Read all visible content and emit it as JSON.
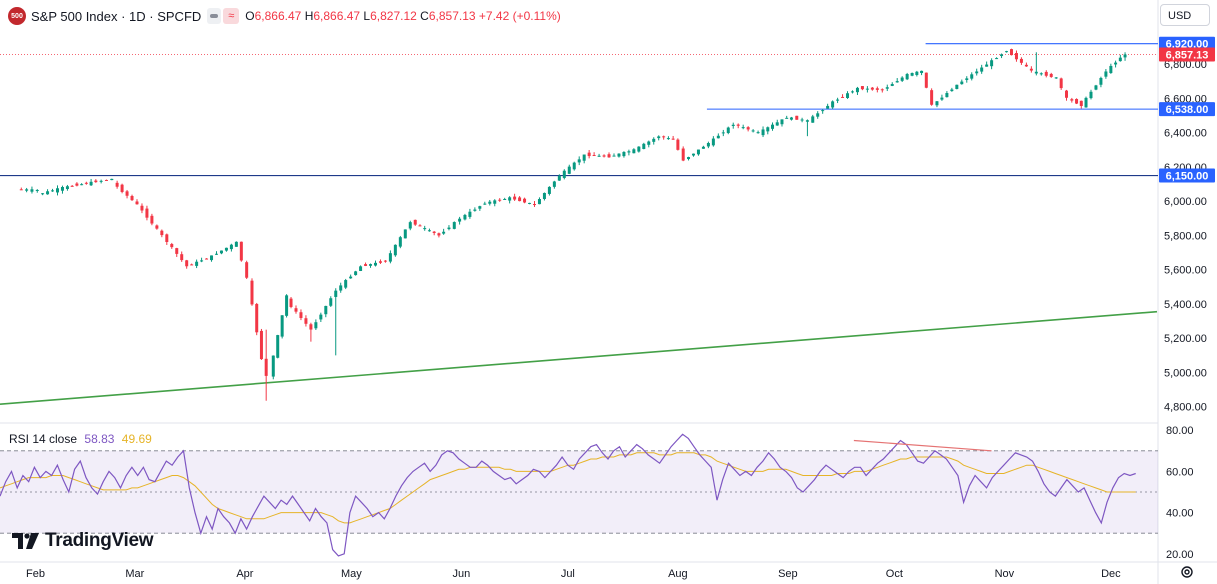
{
  "header": {
    "logo_text": "500",
    "title": "S&P 500 Index · 1D · SPCFD",
    "open_label": "O",
    "open": "6,866.47",
    "high_label": "H",
    "high": "6,866.47",
    "low_label": "L",
    "low": "6,827.12",
    "close_label": "C",
    "close": "6,857.13",
    "change": "+7.42 (+0.11%)"
  },
  "currency": "USD",
  "rsi_header": {
    "label": "RSI 14 close",
    "rsi": "58.83",
    "ma": "49.69"
  },
  "brand": "TradingView",
  "chart_data": {
    "type": "candlestick",
    "main": {
      "y_ticks": [
        4800,
        5000,
        5200,
        5400,
        5600,
        5800,
        6000,
        6200,
        6400,
        6600,
        6800
      ],
      "y_tick_labels": [
        "4,800.00",
        "5,000.00",
        "5,200.00",
        "5,400.00",
        "5,600.00",
        "5,800.00",
        "6,000.00",
        "6,200.00",
        "6,400.00",
        "6,600.00",
        "6,800.00"
      ],
      "ylim": [
        4705,
        7000
      ],
      "x_months": [
        "Feb",
        "Mar",
        "Apr",
        "May",
        "Jun",
        "Jul",
        "Aug",
        "Sep",
        "Oct",
        "Nov",
        "Dec"
      ],
      "price_labels": [
        {
          "value": 6920,
          "text": "6,920.00",
          "color": "#2962ff"
        },
        {
          "value": 6857.13,
          "text": "6,857.13",
          "color": "#f23645"
        },
        {
          "value": 6538,
          "text": "6,538.00",
          "color": "#2962ff"
        },
        {
          "value": 6150,
          "text": "6,150.00",
          "color": "#2962ff"
        }
      ],
      "horizontal_lines": [
        {
          "value": 6920,
          "x_start": 0.8,
          "color": "#2962ff"
        },
        {
          "value": 6538,
          "x_start": 0.611,
          "color": "#2962ff"
        },
        {
          "value": 6150,
          "x_start": 0.0,
          "color": "#1e3a8a"
        }
      ],
      "trend_line": {
        "from": [
          0.0,
          4815
        ],
        "to": [
          1.0,
          5355
        ],
        "color": "#43a047"
      },
      "current_price": 6857.13,
      "candles": [
        {
          "date": "2025-01-28",
          "o": 6070,
          "h": 6090,
          "l": 6040,
          "c": 6065
        },
        {
          "date": "2025-02-03",
          "o": 6040,
          "h": 6100,
          "l": 5990,
          "c": 6080
        },
        {
          "date": "2025-02-10",
          "o": 6080,
          "h": 6120,
          "l": 6060,
          "c": 6110
        },
        {
          "date": "2025-02-18",
          "o": 6110,
          "h": 6150,
          "l": 6080,
          "c": 6130
        },
        {
          "date": "2025-02-24",
          "o": 6110,
          "h": 6125,
          "l": 5960,
          "c": 5980
        },
        {
          "date": "2025-03-03",
          "o": 5980,
          "h": 6000,
          "l": 5780,
          "c": 5800
        },
        {
          "date": "2025-03-10",
          "o": 5800,
          "h": 5820,
          "l": 5580,
          "c": 5620
        },
        {
          "date": "2025-03-17",
          "o": 5620,
          "h": 5720,
          "l": 5600,
          "c": 5680
        },
        {
          "date": "2025-03-24",
          "o": 5680,
          "h": 5790,
          "l": 5650,
          "c": 5760
        },
        {
          "date": "2025-03-31",
          "o": 5760,
          "h": 5780,
          "l": 5500,
          "c": 5550
        },
        {
          "date": "2025-04-03",
          "o": 5550,
          "h": 5560,
          "l": 5050,
          "c": 5080
        },
        {
          "date": "2025-04-07",
          "o": 5080,
          "h": 5250,
          "l": 4835,
          "c": 4980
        },
        {
          "date": "2025-04-09",
          "o": 4980,
          "h": 5480,
          "l": 4950,
          "c": 5450
        },
        {
          "date": "2025-04-14",
          "o": 5420,
          "h": 5460,
          "l": 5180,
          "c": 5250
        },
        {
          "date": "2025-04-21",
          "o": 5250,
          "h": 5500,
          "l": 5100,
          "c": 5480
        },
        {
          "date": "2025-04-28",
          "o": 5480,
          "h": 5640,
          "l": 5460,
          "c": 5620
        },
        {
          "date": "2025-05-05",
          "o": 5620,
          "h": 5680,
          "l": 5580,
          "c": 5650
        },
        {
          "date": "2025-05-12",
          "o": 5650,
          "h": 5900,
          "l": 5640,
          "c": 5880
        },
        {
          "date": "2025-05-19",
          "o": 5880,
          "h": 5940,
          "l": 5780,
          "c": 5800
        },
        {
          "date": "2025-05-27",
          "o": 5800,
          "h": 5920,
          "l": 5780,
          "c": 5900
        },
        {
          "date": "2025-06-02",
          "o": 5900,
          "h": 6000,
          "l": 5880,
          "c": 5990
        },
        {
          "date": "2025-06-09",
          "o": 5990,
          "h": 6050,
          "l": 5950,
          "c": 6020
        },
        {
          "date": "2025-06-16",
          "o": 6020,
          "h": 6040,
          "l": 5960,
          "c": 5980
        },
        {
          "date": "2025-06-23",
          "o": 5980,
          "h": 6170,
          "l": 5960,
          "c": 6150
        },
        {
          "date": "2025-06-30",
          "o": 6150,
          "h": 6290,
          "l": 6140,
          "c": 6270
        },
        {
          "date": "2025-07-07",
          "o": 6270,
          "h": 6300,
          "l": 6240,
          "c": 6260
        },
        {
          "date": "2025-07-14",
          "o": 6260,
          "h": 6320,
          "l": 6230,
          "c": 6300
        },
        {
          "date": "2025-07-21",
          "o": 6300,
          "h": 6400,
          "l": 6290,
          "c": 6380
        },
        {
          "date": "2025-07-28",
          "o": 6380,
          "h": 6430,
          "l": 6340,
          "c": 6360
        },
        {
          "date": "2025-08-01",
          "o": 6360,
          "h": 6370,
          "l": 6210,
          "c": 6240
        },
        {
          "date": "2025-08-04",
          "o": 6240,
          "h": 6360,
          "l": 6220,
          "c": 6340
        },
        {
          "date": "2025-08-11",
          "o": 6340,
          "h": 6480,
          "l": 6330,
          "c": 6450
        },
        {
          "date": "2025-08-18",
          "o": 6450,
          "h": 6480,
          "l": 6340,
          "c": 6400
        },
        {
          "date": "2025-08-25",
          "o": 6400,
          "h": 6510,
          "l": 6380,
          "c": 6490
        },
        {
          "date": "2025-09-02",
          "o": 6490,
          "h": 6530,
          "l": 6380,
          "c": 6470
        },
        {
          "date": "2025-09-08",
          "o": 6470,
          "h": 6600,
          "l": 6460,
          "c": 6580
        },
        {
          "date": "2025-09-15",
          "o": 6580,
          "h": 6680,
          "l": 6570,
          "c": 6660
        },
        {
          "date": "2025-09-22",
          "o": 6660,
          "h": 6700,
          "l": 6610,
          "c": 6650
        },
        {
          "date": "2025-09-29",
          "o": 6650,
          "h": 6760,
          "l": 6640,
          "c": 6740
        },
        {
          "date": "2025-10-06",
          "o": 6740,
          "h": 6780,
          "l": 6720,
          "c": 6760
        },
        {
          "date": "2025-10-10",
          "o": 6760,
          "h": 6770,
          "l": 6550,
          "c": 6560
        },
        {
          "date": "2025-10-13",
          "o": 6560,
          "h": 6720,
          "l": 6540,
          "c": 6680
        },
        {
          "date": "2025-10-20",
          "o": 6680,
          "h": 6800,
          "l": 6660,
          "c": 6780
        },
        {
          "date": "2025-10-27",
          "o": 6780,
          "h": 6920,
          "l": 6770,
          "c": 6880
        },
        {
          "date": "2025-11-03",
          "o": 6880,
          "h": 6890,
          "l": 6720,
          "c": 6760
        },
        {
          "date": "2025-11-10",
          "o": 6760,
          "h": 6870,
          "l": 6660,
          "c": 6720
        },
        {
          "date": "2025-11-17",
          "o": 6720,
          "h": 6740,
          "l": 6560,
          "c": 6600
        },
        {
          "date": "2025-11-20",
          "o": 6600,
          "h": 6620,
          "l": 6540,
          "c": 6560
        },
        {
          "date": "2025-11-24",
          "o": 6560,
          "h": 6780,
          "l": 6540,
          "c": 6760
        },
        {
          "date": "2025-12-01",
          "o": 6760,
          "h": 6860,
          "l": 6750,
          "c": 6840
        },
        {
          "date": "2025-12-05",
          "o": 6840,
          "h": 6870,
          "l": 6820,
          "c": 6857
        }
      ]
    },
    "rsi": {
      "y_ticks": [
        20,
        40,
        60,
        80
      ],
      "y_tick_labels": [
        "20.00",
        "40.00",
        "60.00",
        "80.00"
      ],
      "ylim": [
        17,
        83
      ],
      "bands": [
        30,
        50,
        70
      ],
      "rsi_color": "#7e57c2",
      "ma_color": "#e6b428",
      "rsi_values": [
        48,
        55,
        60,
        52,
        58,
        55,
        62,
        57,
        60,
        58,
        63,
        56,
        50,
        61,
        65,
        57,
        52,
        49,
        55,
        60,
        57,
        52,
        58,
        62,
        58,
        62,
        56,
        55,
        60,
        65,
        63,
        67,
        70,
        52,
        40,
        30,
        38,
        32,
        42,
        38,
        35,
        30,
        37,
        32,
        38,
        43,
        48,
        45,
        42,
        46,
        44,
        48,
        44,
        40,
        36,
        42,
        38,
        35,
        22,
        19,
        20,
        40,
        48,
        45,
        42,
        38,
        40,
        37,
        42,
        48,
        53,
        57,
        60,
        62,
        64,
        60,
        63,
        68,
        70,
        69,
        66,
        64,
        62,
        62,
        65,
        63,
        60,
        58,
        56,
        57,
        54,
        56,
        58,
        61,
        60,
        57,
        60,
        63,
        67,
        63,
        61,
        66,
        69,
        72,
        73,
        69,
        66,
        70,
        72,
        67,
        70,
        73,
        71,
        68,
        66,
        64,
        68,
        72,
        75,
        78,
        76,
        72,
        68,
        65,
        62,
        46,
        56,
        64,
        61,
        58,
        60,
        58,
        62,
        65,
        69,
        66,
        62,
        60,
        57,
        52,
        50,
        53,
        56,
        60,
        63,
        61,
        59,
        57,
        60,
        62,
        62,
        58,
        61,
        64,
        66,
        69,
        72,
        75,
        73,
        69,
        65,
        64,
        67,
        70,
        68,
        66,
        62,
        58,
        45,
        53,
        58,
        55,
        52,
        57,
        60,
        63,
        66,
        69,
        68,
        67,
        65,
        60,
        54,
        50,
        48,
        52,
        56,
        53,
        50,
        52,
        46,
        40,
        35,
        45,
        52,
        57,
        59,
        58,
        59
      ],
      "ma_values": [
        52,
        53,
        54,
        55,
        56,
        57,
        57,
        57,
        57,
        58,
        58,
        58,
        57,
        56,
        55,
        54,
        53,
        52,
        51,
        51,
        51,
        51,
        51,
        52,
        52,
        53,
        54,
        55,
        56,
        57,
        58,
        58,
        57,
        55,
        53,
        50,
        47,
        44,
        42,
        41,
        40,
        39,
        38,
        37,
        37,
        37,
        37,
        38,
        39,
        40,
        40,
        40,
        40,
        40,
        40,
        40,
        40,
        39,
        38,
        36,
        35,
        35,
        36,
        37,
        38,
        39,
        40,
        41,
        42,
        44,
        46,
        48,
        50,
        52,
        54,
        56,
        57,
        58,
        59,
        60,
        61,
        61,
        62,
        62,
        62,
        62,
        62,
        62,
        61,
        61,
        60,
        60,
        60,
        60,
        60,
        60,
        60,
        61,
        62,
        63,
        63,
        64,
        65,
        66,
        66,
        67,
        67,
        67,
        68,
        68,
        68,
        69,
        69,
        69,
        69,
        68,
        68,
        68,
        69,
        69,
        69,
        69,
        68,
        68,
        67,
        65,
        64,
        63,
        62,
        61,
        60,
        60,
        60,
        60,
        61,
        61,
        61,
        61,
        60,
        59,
        58,
        58,
        58,
        58,
        58,
        58,
        59,
        59,
        59,
        60,
        60,
        60,
        61,
        62,
        63,
        64,
        65,
        66,
        66,
        67,
        67,
        67,
        67,
        67,
        67,
        67,
        66,
        65,
        63,
        62,
        61,
        60,
        59,
        59,
        59,
        59,
        60,
        61,
        62,
        63,
        63,
        62,
        61,
        60,
        59,
        58,
        57,
        56,
        55,
        54,
        53,
        52,
        51,
        50,
        50,
        50,
        50,
        50,
        50
      ]
    },
    "annotations": {
      "rsi_divergence": {
        "from": [
          0.738,
          75
        ],
        "to": [
          0.857,
          70
        ],
        "color": "#e57373"
      }
    }
  }
}
